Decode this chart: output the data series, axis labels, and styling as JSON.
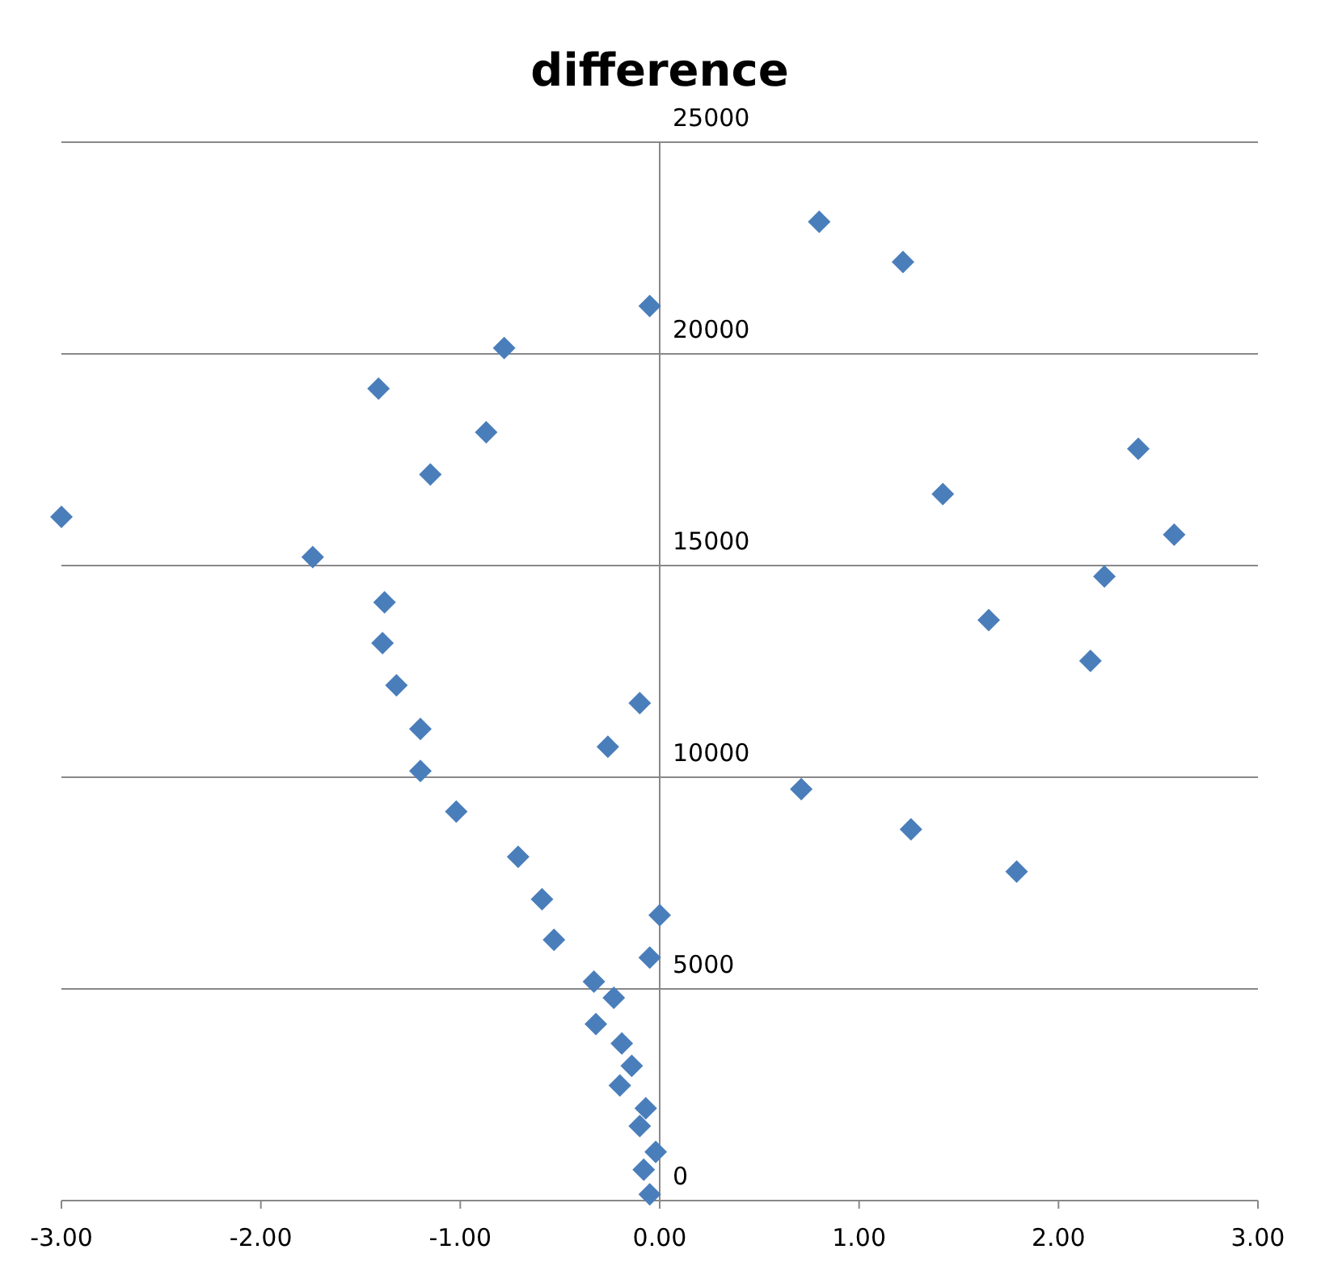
{
  "chart_data": {
    "type": "scatter",
    "title": "difference",
    "x": [
      -3.0,
      -1.74,
      -1.41,
      -1.38,
      -1.39,
      -1.32,
      -1.15,
      -1.2,
      -1.2,
      -1.02,
      -0.87,
      -0.78,
      -0.71,
      -0.59,
      -0.53,
      -0.33,
      -0.32,
      -0.26,
      -0.23,
      -0.19,
      -0.2,
      -0.14,
      -0.1,
      -0.1,
      -0.07,
      -0.08,
      -0.05,
      -0.05,
      -0.05,
      -0.02,
      0.0,
      0.8,
      0.71,
      1.22,
      1.26,
      1.42,
      1.65,
      1.79,
      2.16,
      2.23,
      2.4,
      2.58
    ],
    "values": [
      16150,
      15200,
      19180,
      14130,
      13170,
      12170,
      17150,
      11140,
      10150,
      9190,
      18150,
      20140,
      8120,
      7120,
      6160,
      5170,
      4170,
      10720,
      4790,
      3710,
      2720,
      3180,
      11750,
      1760,
      2180,
      730,
      21130,
      5740,
      150,
      1150,
      6740,
      23120,
      9720,
      22170,
      8770,
      16690,
      13710,
      7770,
      12750,
      14740,
      17760,
      15730
    ],
    "color": "#4a7ebb",
    "marker": "diamond",
    "xlim": [
      -3,
      3
    ],
    "xticks": [
      {
        "value": -3,
        "label": "-3.00"
      },
      {
        "value": -2,
        "label": "-2.00"
      },
      {
        "value": -1,
        "label": "-1.00"
      },
      {
        "value": 0,
        "label": "0.00"
      },
      {
        "value": 1,
        "label": "1.00"
      },
      {
        "value": 2,
        "label": "2.00"
      },
      {
        "value": 3,
        "label": "3.00"
      }
    ],
    "ylim": [
      0,
      25000
    ],
    "yticks": [
      0,
      5000,
      10000,
      15000,
      20000,
      25000
    ],
    "grid": "y"
  }
}
